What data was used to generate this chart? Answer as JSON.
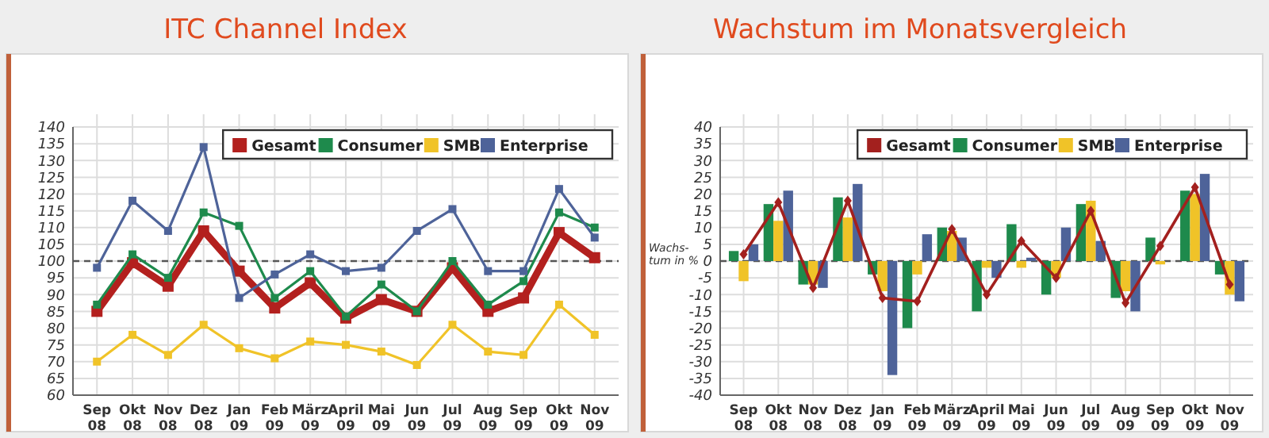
{
  "chart_data": [
    {
      "type": "line",
      "title": "ITC Channel Index",
      "categories": [
        "Sep 08",
        "Okt 08",
        "Nov 08",
        "Dez 08",
        "Jan 09",
        "Feb 09",
        "März 09",
        "April 09",
        "Mai 09",
        "Jun 09",
        "Jul 09",
        "Aug 09",
        "Sep 09",
        "Okt 09",
        "Nov 09"
      ],
      "series": [
        {
          "name": "Gesamt",
          "color": "#b3201e",
          "values": [
            85,
            99.5,
            92.5,
            109,
            97,
            86,
            93.5,
            83,
            88.5,
            85,
            98,
            85,
            89,
            108.5,
            101
          ]
        },
        {
          "name": "Consumer",
          "color": "#1e8a4c",
          "values": [
            87,
            102,
            95,
            114.5,
            110.5,
            89,
            97,
            83.5,
            93,
            85,
            100,
            87,
            94,
            114.5,
            110
          ]
        },
        {
          "name": "SMB",
          "color": "#f0c328",
          "values": [
            70,
            78,
            72,
            81,
            74,
            71,
            76,
            75,
            73,
            69,
            81,
            73,
            72,
            87,
            78
          ]
        },
        {
          "name": "Enterprise",
          "color": "#4e6399",
          "values": [
            98,
            118,
            109,
            134,
            89,
            96,
            102,
            97,
            98,
            109,
            115.5,
            97,
            97,
            121.5,
            107
          ]
        }
      ],
      "ylim": [
        60,
        140
      ],
      "yticks": [
        60,
        65,
        70,
        75,
        80,
        85,
        90,
        95,
        100,
        105,
        110,
        115,
        120,
        125,
        130,
        135,
        140
      ],
      "ref_lines": [
        {
          "axis": "y",
          "value": 100,
          "line_style": "dashed",
          "color": "#555555"
        }
      ],
      "grid": true,
      "legend": "top right",
      "marker": "square"
    },
    {
      "type": "bar",
      "title": "Wachstum im Monatsvergleich",
      "ylabel": "Wachs-tum in %",
      "categories": [
        "Sep 08",
        "Okt 08",
        "Nov 08",
        "Dez 08",
        "Jan 09",
        "Feb 09",
        "März 09",
        "April 09",
        "Mai 09",
        "Jun 09",
        "Jul 09",
        "Aug 09",
        "Sep 09",
        "Okt 09",
        "Nov 09"
      ],
      "series": [
        {
          "name": "Gesamt",
          "type": "line",
          "color": "#a3201e",
          "values": [
            2,
            17.5,
            -8,
            18,
            -11,
            -12,
            9.5,
            -10,
            6,
            -5,
            15,
            -12.5,
            4.5,
            22,
            -7
          ]
        },
        {
          "name": "Consumer",
          "color": "#1e8a4c",
          "values": [
            3,
            17,
            -7,
            19,
            -4,
            -20,
            10,
            -15,
            11,
            -10,
            17,
            -11,
            7,
            21,
            -4
          ]
        },
        {
          "name": "SMB",
          "color": "#f0c328",
          "values": [
            -6,
            12,
            -7,
            13,
            -9,
            -4,
            9,
            -2,
            -2,
            -5,
            18,
            -9,
            -1,
            20,
            -10
          ]
        },
        {
          "name": "Enterprise",
          "color": "#4e6399",
          "values": [
            5,
            21,
            -8,
            23,
            -34,
            8,
            7,
            -5,
            1,
            10,
            6,
            -15,
            0,
            26,
            -12
          ]
        }
      ],
      "ylim": [
        -40,
        40
      ],
      "yticks": [
        -40,
        -35,
        -30,
        -25,
        -20,
        -15,
        -10,
        -5,
        0,
        5,
        10,
        15,
        20,
        25,
        30,
        35,
        40
      ],
      "ref_lines": [
        {
          "axis": "y",
          "value": 0,
          "line_style": "dashed",
          "color": "#555555"
        }
      ],
      "grid": true,
      "legend": "top right",
      "marker": "diamond"
    }
  ]
}
